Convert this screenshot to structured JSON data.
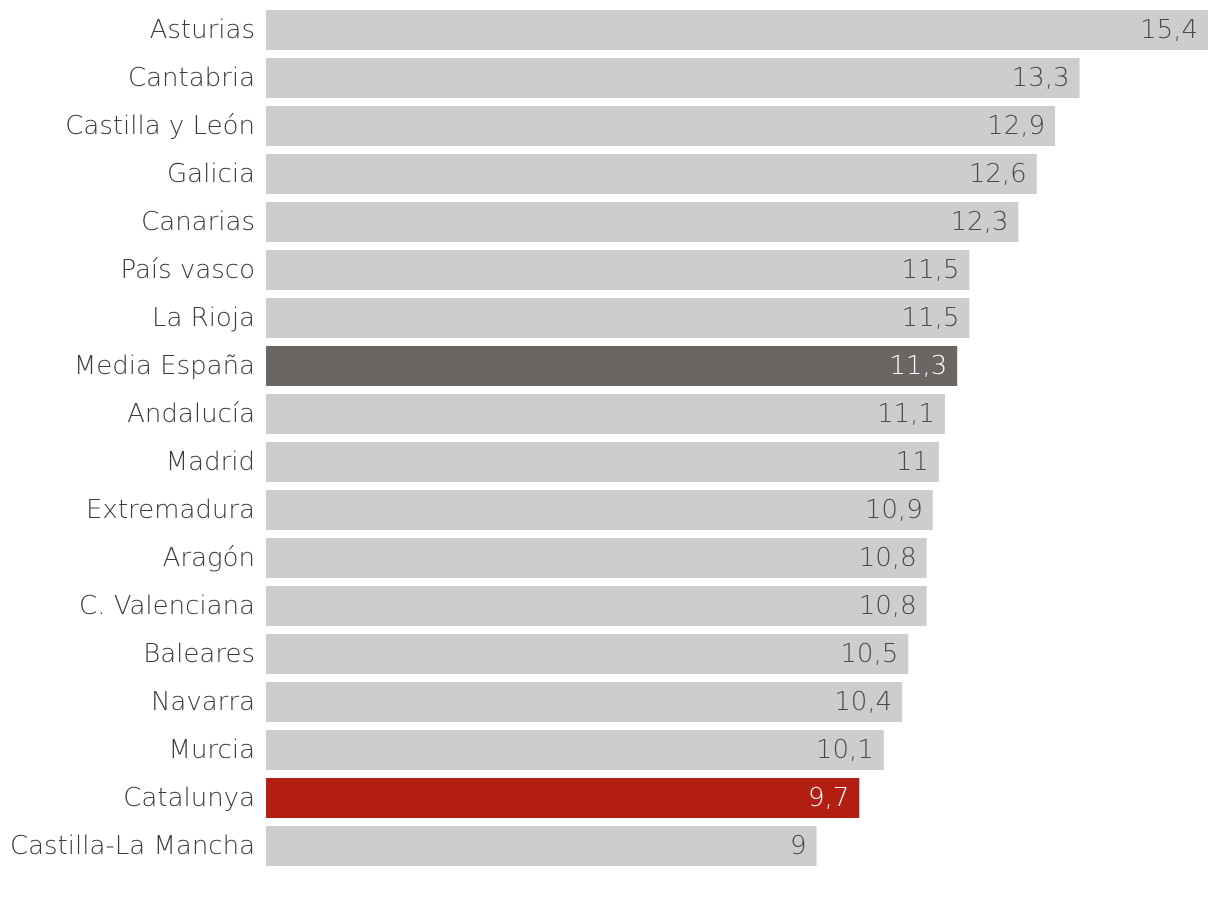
{
  "chart_data": {
    "type": "bar",
    "orientation": "horizontal",
    "categories": [
      "Asturias",
      "Cantabria",
      "Castilla y León",
      "Galicia",
      "Canarias",
      "País vasco",
      "La Rioja",
      "Media España",
      "Andalucía",
      "Madrid",
      "Extremadura",
      "Aragón",
      "C. Valenciana",
      "Baleares",
      "Navarra",
      "Murcia",
      "Catalunya",
      "Castilla-La Mancha"
    ],
    "values": [
      15.4,
      13.3,
      12.9,
      12.6,
      12.3,
      11.5,
      11.5,
      11.3,
      11.1,
      11,
      10.9,
      10.8,
      10.8,
      10.5,
      10.4,
      10.1,
      9.7,
      9
    ],
    "value_labels": [
      "15,4",
      "13,3",
      "12,9",
      "12,6",
      "12,3",
      "11,5",
      "11,5",
      "11,3",
      "11,1",
      "11",
      "10,9",
      "10,8",
      "10,8",
      "10,5",
      "10,4",
      "10,1",
      "9,7",
      "9"
    ],
    "highlight": {
      "Media España": "#6b6564",
      "Catalunya": "#b41f13"
    },
    "default_color": "#cecccf",
    "title": "",
    "xlabel": "",
    "ylabel": "",
    "xlim": [
      0,
      15.4
    ],
    "grid": false,
    "legend": "none"
  }
}
